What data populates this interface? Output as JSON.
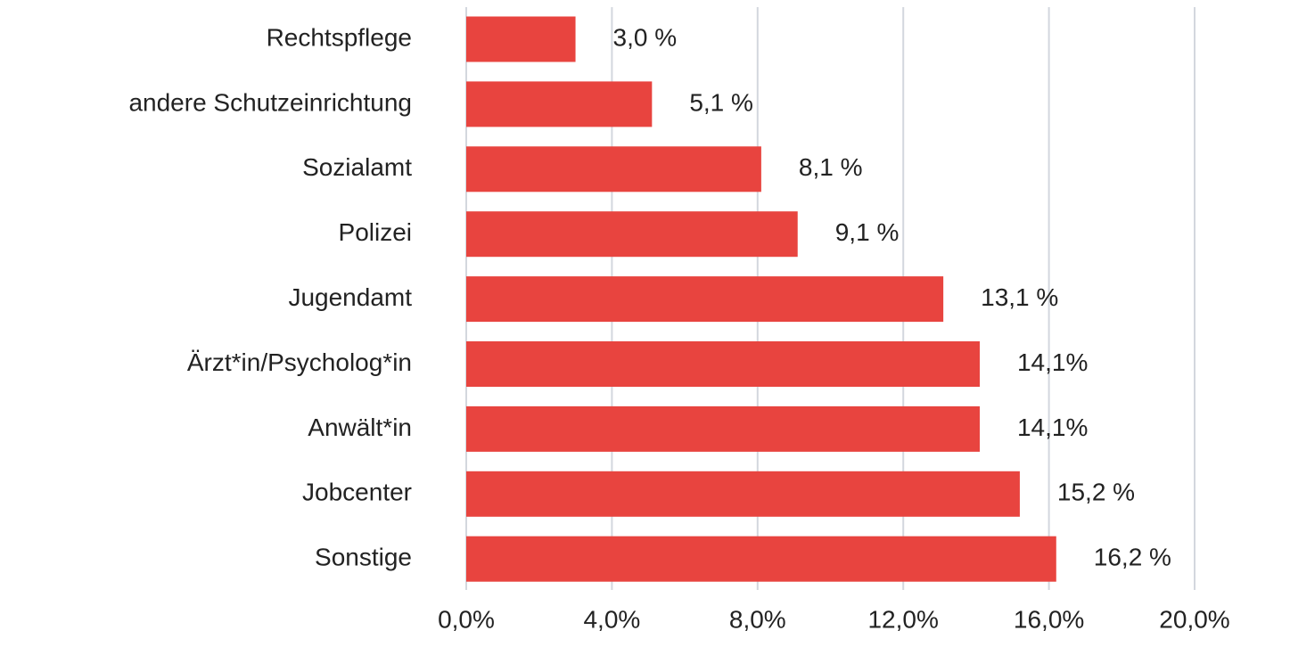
{
  "chart_data": {
    "type": "barh",
    "categories": [
      "Rechtspflege",
      "andere Schutzeinrichtung",
      "Sozialamt",
      "Polizei",
      "Jugendamt",
      "Ärzt*in/Psycholog*in",
      "Anwält*in",
      "Jobcenter",
      "Sonstige"
    ],
    "values": [
      3.0,
      5.1,
      8.1,
      9.1,
      13.1,
      14.1,
      14.1,
      15.2,
      16.2
    ],
    "value_labels": [
      "3,0 %",
      "5,1 %",
      "8,1 %",
      "9,1 %",
      "13,1 %",
      "14,1%",
      "14,1%",
      "15,2 %",
      "16,2 %"
    ],
    "color": "#e8443f",
    "xlim": [
      0,
      20
    ],
    "xticks": [
      {
        "value": 0,
        "label": "0,0%"
      },
      {
        "value": 4,
        "label": "4,0%"
      },
      {
        "value": 8,
        "label": "8,0%"
      },
      {
        "value": 12,
        "label": "12,0%"
      },
      {
        "value": 16,
        "label": "16,0%"
      },
      {
        "value": 20,
        "label": "20,0%"
      }
    ],
    "grid": true
  }
}
